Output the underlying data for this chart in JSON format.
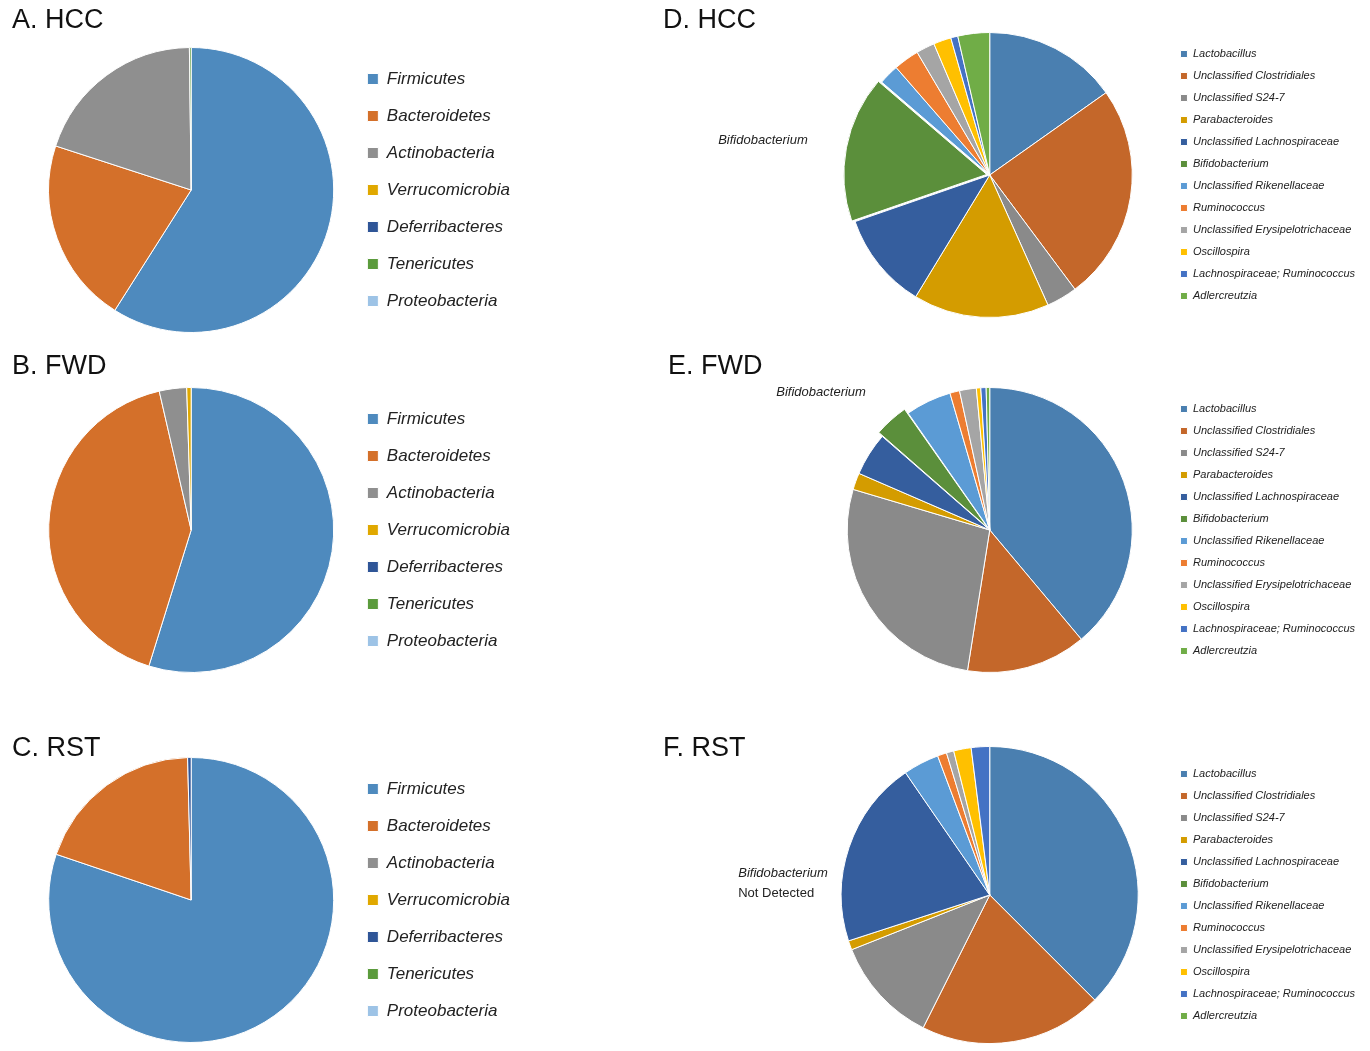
{
  "chart_data": [
    {
      "type": "pie",
      "title": "A. HCC",
      "legend": "right",
      "categories": [
        "Firmicutes",
        "Bacteroidetes",
        "Actinobacteria",
        "Verrucomicrobia",
        "Deferribacteres",
        "Tenericutes",
        "Proteobacteria"
      ],
      "values": [
        59,
        21,
        19.8,
        0,
        0,
        0.2,
        0
      ],
      "colors": [
        "#4e8abe",
        "#d4702a",
        "#8f8f8f",
        "#e0a800",
        "#2f5597",
        "#5b9b3c",
        "#9dc3e6"
      ]
    },
    {
      "type": "pie",
      "title": "B. FWD",
      "legend": "right",
      "categories": [
        "Firmicutes",
        "Bacteroidetes",
        "Actinobacteria",
        "Verrucomicrobia",
        "Deferribacteres",
        "Tenericutes",
        "Proteobacteria"
      ],
      "values": [
        54.8,
        41.6,
        3.1,
        0.5,
        0,
        0,
        0
      ],
      "colors": [
        "#4e8abe",
        "#d4702a",
        "#8f8f8f",
        "#e0a800",
        "#2f5597",
        "#5b9b3c",
        "#9dc3e6"
      ]
    },
    {
      "type": "pie",
      "title": "C. RST",
      "legend": "right",
      "categories": [
        "Firmicutes",
        "Bacteroidetes",
        "Actinobacteria",
        "Verrucomicrobia",
        "Deferribacteres",
        "Tenericutes",
        "Proteobacteria"
      ],
      "values": [
        80.2,
        19.4,
        0,
        0,
        0.4,
        0,
        0
      ],
      "colors": [
        "#4e8abe",
        "#d4702a",
        "#8f8f8f",
        "#e0a800",
        "#2f5597",
        "#5b9b3c",
        "#9dc3e6"
      ]
    },
    {
      "type": "pie",
      "title": "D. HCC",
      "legend": "right",
      "categories": [
        "Lactobacillus",
        "Unclassified Clostridiales",
        "Unclassified S24-7",
        "Parabacteroides",
        "Unclassified Lachnospiraceae",
        "Bifidobacterium",
        "Unclassified Rikenellaceae",
        "Ruminococcus",
        "Unclassified Erysipelotrichaceae",
        "Oscillospira",
        "Lachnospiraceae; Ruminococcus",
        "Adlercreutzia"
      ],
      "values": [
        15.2,
        24.6,
        3.5,
        15.4,
        11.0,
        16.6,
        2.3,
        2.9,
        2.1,
        2.0,
        0.8,
        3.6
      ],
      "colors": [
        "#4a7fb0",
        "#c4672a",
        "#8a8a8a",
        "#d49c00",
        "#355e9e",
        "#5b8f3b",
        "#5b9bd5",
        "#ed7d31",
        "#a5a5a5",
        "#ffc000",
        "#4472c4",
        "#70ad47"
      ],
      "annotations": [
        {
          "text": "Bifidobacterium",
          "x": "Bifidobacterium"
        }
      ]
    },
    {
      "type": "pie",
      "title": "E. FWD",
      "legend": "right",
      "categories": [
        "Lactobacillus",
        "Unclassified Clostridiales",
        "Unclassified S24-7",
        "Parabacteroides",
        "Unclassified Lachnospiraceae",
        "Bifidobacterium",
        "Unclassified Rikenellaceae",
        "Ruminococcus",
        "Unclassified Erysipelotrichaceae",
        "Oscillospira",
        "Lachnospiraceae; Ruminococcus",
        "Adlercreutzia"
      ],
      "values": [
        38.9,
        13.6,
        27.1,
        1.9,
        4.9,
        3.9,
        5.2,
        1.1,
        1.9,
        0.5,
        0.6,
        0.4
      ],
      "colors": [
        "#4a7fb0",
        "#c4672a",
        "#8a8a8a",
        "#d49c00",
        "#355e9e",
        "#5b8f3b",
        "#5b9bd5",
        "#ed7d31",
        "#a5a5a5",
        "#ffc000",
        "#4472c4",
        "#70ad47"
      ],
      "annotations": [
        {
          "text": "Bifidobacterium",
          "x": "Bifidobacterium"
        }
      ]
    },
    {
      "type": "pie",
      "title": "F. RST",
      "legend": "right",
      "categories": [
        "Lactobacillus",
        "Unclassified Clostridiales",
        "Unclassified S24-7",
        "Parabacteroides",
        "Unclassified Lachnospiraceae",
        "Bifidobacterium",
        "Unclassified Rikenellaceae",
        "Ruminococcus",
        "Unclassified Erysipelotrichaceae",
        "Oscillospira",
        "Lachnospiraceae; Ruminococcus",
        "Adlercreutzia"
      ],
      "values": [
        37.5,
        19.9,
        11.6,
        1.0,
        20.4,
        0,
        3.9,
        1.0,
        0.8,
        1.9,
        2.0,
        0
      ],
      "colors": [
        "#4a7fb0",
        "#c4672a",
        "#8a8a8a",
        "#d49c00",
        "#355e9e",
        "#5b8f3b",
        "#5b9bd5",
        "#ed7d31",
        "#a5a5a5",
        "#ffc000",
        "#4472c4",
        "#70ad47"
      ],
      "annotations": [
        "Bifidobacterium\nNot Detected"
      ]
    }
  ]
}
